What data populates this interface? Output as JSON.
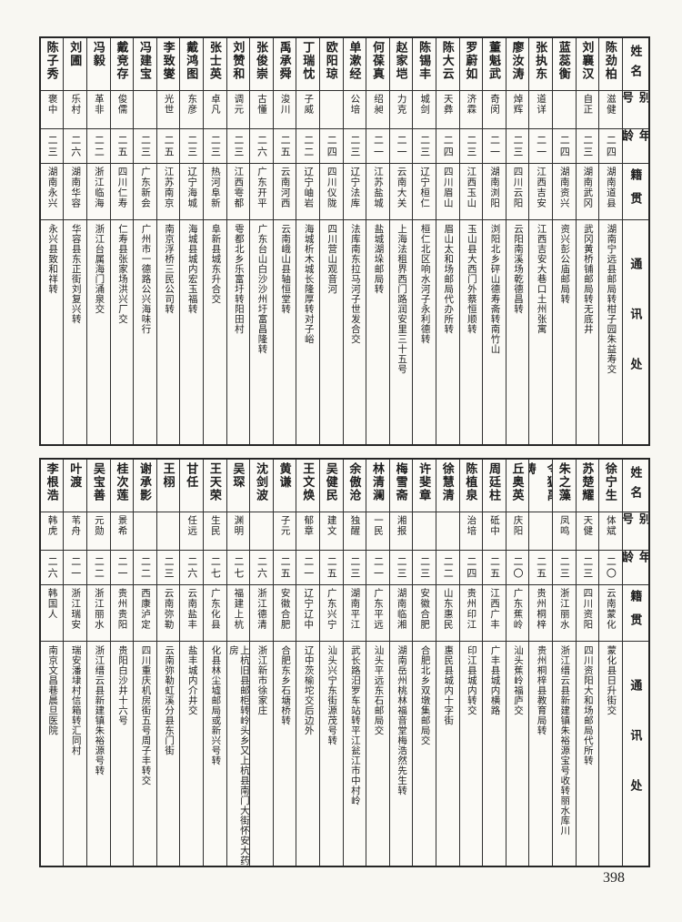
{
  "page_number": "398",
  "column_headers": {
    "name": "姓名",
    "alias": "别号",
    "age": "年龄",
    "native_place": "籍贯",
    "address": "通讯处"
  },
  "tables": [
    {
      "id": "upper",
      "persons": [
        {
          "name": "陈劲柏",
          "alias": "滋健",
          "age": "二四",
          "native": "湖南道县",
          "address": "湖南宁远县邮局转柑子园朱益寿交"
        },
        {
          "name": "刘襄汉",
          "alias": "自正",
          "age": "二三",
          "native": "湖南武冈",
          "address": "武冈黄桥铺邮局转无底井"
        },
        {
          "name": "蓝蕊衡",
          "alias": "",
          "age": "二四",
          "native": "湖南资兴",
          "address": "资兴彭公庙邮局转"
        },
        {
          "name": "张执东",
          "alias": "道详",
          "age": "二一",
          "native": "江西吉安",
          "address": "江西吉安大巷口土州张寓"
        },
        {
          "name": "廖汝涛",
          "alias": "焯辉",
          "age": "二三",
          "native": "四川云阳",
          "address": "云阳南溪场乾德昌转"
        },
        {
          "name": "董魁武",
          "alias": "奇闵",
          "age": "二一",
          "native": "湖南浏阳",
          "address": "浏阳北乡砰山德寿斋转南竹山"
        },
        {
          "name": "罗蔚如",
          "alias": "济霖",
          "age": "二三",
          "native": "江西玉山",
          "address": "玉山县大西门外蔡恒顺转"
        },
        {
          "name": "陈大云",
          "alias": "天彝",
          "age": "二四",
          "native": "四川眉山",
          "address": "眉山太和场邮局代办所转"
        },
        {
          "name": "陈锡丰",
          "alias": "城剑",
          "age": "二三",
          "native": "辽宁桓仁",
          "address": "桓仁北区响水河子永利德转"
        },
        {
          "name": "赵家垲",
          "alias": "力克",
          "age": "二一",
          "native": "云南大关",
          "address": "上海法租界西门路润安里三十五号"
        },
        {
          "name": "何葆真",
          "alias": "绍昶",
          "age": "二一",
          "native": "江苏盐城",
          "address": "盐城湖垛邮局转"
        },
        {
          "name": "单漱经",
          "alias": "公培",
          "age": "二三",
          "native": "辽宁法库",
          "address": "法库南东拉马河子世发合交"
        },
        {
          "name": "欧阳琼",
          "alias": "",
          "age": "二四",
          "native": "四川仪陇",
          "address": "四川营山观音河"
        },
        {
          "name": "丁瑞忱",
          "alias": "子威",
          "age": "二二",
          "native": "辽宁岫岩",
          "address": "海城析木城长隆厚转对子峪"
        },
        {
          "name": "禹承舜",
          "alias": "浚川",
          "age": "二五",
          "native": "云南河西",
          "address": "云南峨山县轴恒堂转"
        },
        {
          "name": "张俊崇",
          "alias": "古懂",
          "age": "二六",
          "native": "广东开平",
          "address": "广东台山白沙沙州圩富昌隆转"
        },
        {
          "name": "刘赞和",
          "alias": "调元",
          "age": "二三",
          "native": "江西雩都",
          "address": "雩都北乡乐富圩转阳田村"
        },
        {
          "name": "张士英",
          "alias": "卓凡",
          "age": "二三",
          "native": "热河阜新",
          "address": "阜新县城东升合交"
        },
        {
          "name": "戴鸿图",
          "alias": "东彦",
          "age": "二三",
          "native": "辽宁海城",
          "address": "海城县城内宏玉福转"
        },
        {
          "name": "李致燮",
          "alias": "光世",
          "age": "二五",
          "native": "江苏南京",
          "address": "南京浮桥三民公司转"
        },
        {
          "name": "冯建宝",
          "alias": "",
          "age": "二三",
          "native": "广东新会",
          "address": "广州市一德路公兴海味行"
        },
        {
          "name": "戴竞存",
          "alias": "俊儒",
          "age": "二五",
          "native": "四川仁寿",
          "address": "仁寿县张家场洪兴厂交"
        },
        {
          "name": "冯毅",
          "alias": "革非",
          "age": "二二",
          "native": "浙江临海",
          "address": "浙江台属海门涌泉交"
        },
        {
          "name": "刘圃",
          "alias": "乐村",
          "age": "二六",
          "native": "湖南华容",
          "address": "华容县东正街刘复兴转"
        },
        {
          "name": "陈子秀",
          "alias": "褒中",
          "age": "二三",
          "native": "湖南永兴",
          "address": "永兴县致和祥转"
        }
      ]
    },
    {
      "id": "lower",
      "persons": [
        {
          "name": "徐宁生",
          "alias": "体斌",
          "age": "二〇",
          "native": "云南蒙化",
          "address": "蒙化县日升街交"
        },
        {
          "name": "苏楚耀",
          "alias": "天健",
          "age": "二三",
          "native": "四川资阳",
          "address": "四川资阳大和场邮局代所转"
        },
        {
          "name": "朱之藻",
          "alias": "凤鸣",
          "age": "二三",
          "native": "浙江丽水",
          "address": "浙江缙云县新建镇朱裕源宝号收转丽水库川"
        },
        {
          "name": "令狐禹畴",
          "alias": "",
          "age": "二五",
          "native": "贵州桐梓",
          "address": "贵州桐梓县教育局转"
        },
        {
          "name": "丘奥英",
          "alias": "庆阳",
          "age": "二〇",
          "native": "广东蕉岭",
          "address": "汕头蕉岭福庐交"
        },
        {
          "name": "周廷柱",
          "alias": "砥中",
          "age": "二五",
          "native": "江西广丰",
          "address": "广丰县城内横路"
        },
        {
          "name": "陈植泉",
          "alias": "治培",
          "age": "二四",
          "native": "贵州印江",
          "address": "印江县城内转交"
        },
        {
          "name": "徐慧清",
          "alias": "",
          "age": "二二",
          "native": "山东惠民",
          "address": "惠民县城内十字街"
        },
        {
          "name": "许斐章",
          "alias": "",
          "age": "二三",
          "native": "安徽合肥",
          "address": "合肥北乡双墩集邮局交"
        },
        {
          "name": "梅雪斋",
          "alias": "湘报",
          "age": "二三",
          "native": "湖南临湘",
          "address": "湖南岳州桃林福音堂梅浩然先生转"
        },
        {
          "name": "林清澜",
          "alias": "一民",
          "age": "二一",
          "native": "广东平远",
          "address": "汕头平远东石邮局交"
        },
        {
          "name": "余傲沧",
          "alias": "独醒",
          "age": "二三",
          "native": "湖南平江",
          "address": "武长路汨罗车站转平江瓮江市中村岭"
        },
        {
          "name": "吴健民",
          "alias": "建文",
          "age": "二五",
          "native": "广东兴宁",
          "address": "汕头兴宁东街源茂号转"
        },
        {
          "name": "王文焕",
          "alias": "郁章",
          "age": "二一",
          "native": "辽宁辽中",
          "address": "辽中茨榆坨交后边外"
        },
        {
          "name": "黄谦",
          "alias": "子元",
          "age": "二五",
          "native": "安徽合肥",
          "address": "合肥东乡石塘桥转"
        },
        {
          "name": "沈剑波",
          "alias": "",
          "age": "二六",
          "native": "浙江德清",
          "address": "浙江新市徐家庄"
        },
        {
          "name": "吴琛",
          "alias": "渊明",
          "age": "二七",
          "native": "福建上杭",
          "address": "上杭旧县邮柜转岭头乡又上杭县南门大街怀安大药房"
        },
        {
          "name": "王天荣",
          "alias": "生民",
          "age": "二七",
          "native": "广东化县",
          "address": "化县林尘墟邮局或新兴号转"
        },
        {
          "name": "甘任",
          "alias": "任远",
          "age": "二六",
          "native": "云南盐丰",
          "address": "盐丰城内介井交"
        },
        {
          "name": "王栩",
          "alias": "",
          "age": "二三",
          "native": "云南弥勒",
          "address": "云南弥勒虹溪分县东门街"
        },
        {
          "name": "谢承影",
          "alias": "",
          "age": "二二",
          "native": "西康泸定",
          "address": "四川重庆机房街五号周子丰转交"
        },
        {
          "name": "桂次莲",
          "alias": "景希",
          "age": "二一",
          "native": "贵州贵阳",
          "address": "贵阳白沙井十六号"
        },
        {
          "name": "吴宝善",
          "alias": "元勋",
          "age": "二二",
          "native": "浙江丽水",
          "address": "浙江缙云县新建镇朱裕源号转"
        },
        {
          "name": "叶渡",
          "alias": "苇舟",
          "age": "二一",
          "native": "浙江瑞安",
          "address": "瑞安潘埭村信箱转汇同村"
        },
        {
          "name": "李根浩",
          "alias": "韩虎",
          "age": "二六",
          "native": "韩国人",
          "address": "南京文昌巷晨旦医院"
        }
      ]
    }
  ]
}
